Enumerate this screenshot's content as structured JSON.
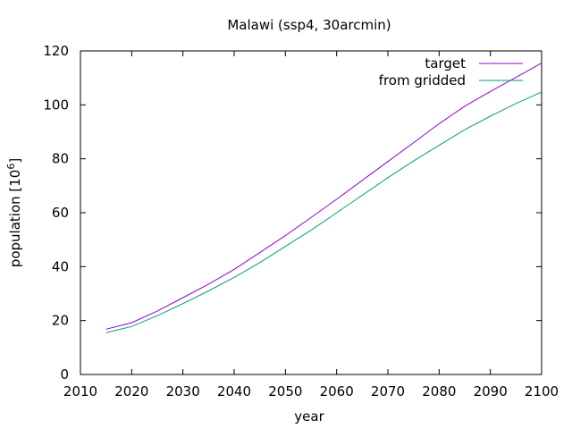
{
  "chart_data": {
    "type": "line",
    "title": "Malawi (ssp4, 30arcmin)",
    "xlabel": "year",
    "ylabel_main": "population [10",
    "ylabel_sup": "6",
    "ylabel_end": "]",
    "xlim": [
      2010,
      2100
    ],
    "ylim": [
      0,
      120
    ],
    "xticks": [
      2010,
      2020,
      2030,
      2040,
      2050,
      2060,
      2070,
      2080,
      2090,
      2100
    ],
    "yticks": [
      0,
      20,
      40,
      60,
      80,
      100,
      120
    ],
    "legend_position": "top-right",
    "grid": false,
    "series": [
      {
        "name": "target",
        "color": "#9400d3",
        "x": [
          2015,
          2020,
          2025,
          2030,
          2035,
          2040,
          2045,
          2050,
          2055,
          2060,
          2065,
          2070,
          2075,
          2080,
          2085,
          2090,
          2095,
          2100
        ],
        "y": [
          16.8,
          19.2,
          23.5,
          28.5,
          33.5,
          39.0,
          45.2,
          51.5,
          58.2,
          65.0,
          72.0,
          79.0,
          86.0,
          93.0,
          99.5,
          105.0,
          110.2,
          115.5
        ]
      },
      {
        "name": "from gridded",
        "color": "#009e73",
        "x": [
          2015,
          2020,
          2025,
          2030,
          2035,
          2040,
          2045,
          2050,
          2055,
          2060,
          2065,
          2070,
          2075,
          2080,
          2085,
          2090,
          2095,
          2100
        ],
        "y": [
          15.5,
          17.8,
          21.8,
          26.3,
          31.0,
          36.0,
          41.5,
          47.5,
          53.5,
          60.0,
          66.5,
          73.0,
          79.2,
          85.0,
          90.8,
          95.8,
          100.5,
          104.8
        ]
      }
    ]
  }
}
